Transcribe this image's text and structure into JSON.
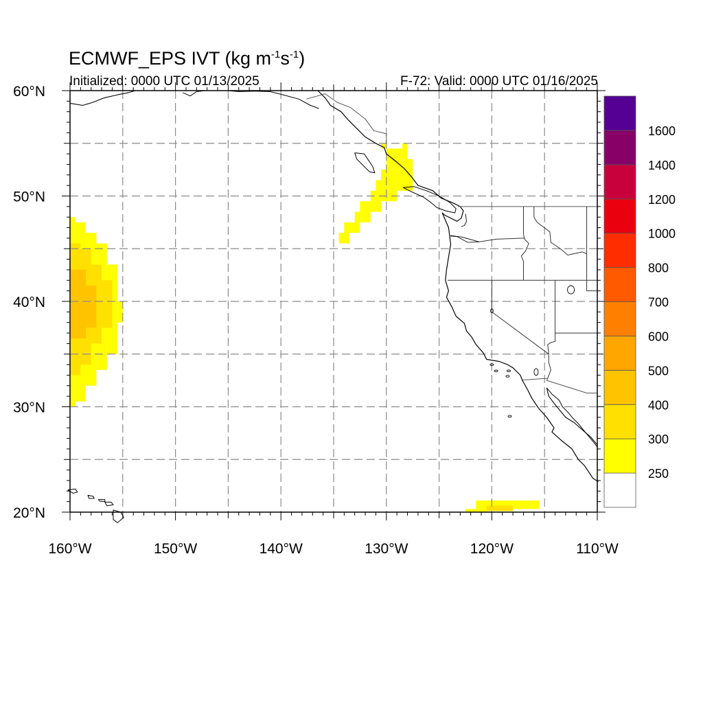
{
  "title": {
    "prefix": "ECMWF_EPS IVT (kg m",
    "exp1": "-1",
    "mid": "s",
    "exp2": "-1",
    "suffix": ")"
  },
  "subtitle_left": "Initialized: 0000 UTC 01/13/2025",
  "subtitle_right": "F-72: Valid: 0000 UTC 01/16/2025",
  "map": {
    "lon_range": [
      -160,
      -110
    ],
    "lat_range": [
      20,
      60
    ],
    "x_ticks": [
      {
        "lon": -160,
        "label": "160°W"
      },
      {
        "lon": -150,
        "label": "150°W"
      },
      {
        "lon": -140,
        "label": "140°W"
      },
      {
        "lon": -130,
        "label": "130°W"
      },
      {
        "lon": -120,
        "label": "120°W"
      },
      {
        "lon": -110,
        "label": "110°W"
      }
    ],
    "y_ticks": [
      {
        "lat": 60,
        "label": "60°N"
      },
      {
        "lat": 50,
        "label": "50°N"
      },
      {
        "lat": 40,
        "label": "40°N"
      },
      {
        "lat": 30,
        "label": "30°N"
      },
      {
        "lat": 20,
        "label": "20°N"
      }
    ],
    "gridlines": "dashed gray every 5 degrees",
    "grid_spacing_deg": 5,
    "colors": {
      "grid": "#8a8a8a",
      "coast": "#000000",
      "state_border": "#333333",
      "frame": "#000000"
    }
  },
  "colorbar": {
    "placement": "right",
    "labels": [
      "250",
      "300",
      "400",
      "500",
      "600",
      "700",
      "800",
      "1000",
      "1200",
      "1400",
      "1600"
    ],
    "colors": [
      "#ffffff",
      "#ffff00",
      "#ffe000",
      "#ffc400",
      "#ffa600",
      "#ff8000",
      "#ff5a00",
      "#ff2d00",
      "#e8000e",
      "#c8003c",
      "#870068",
      "#560093"
    ]
  },
  "ivt_regions": [
    {
      "name": "subtropical plume near 160W",
      "cells": [
        {
          "lon": [
            -160,
            -159.5
          ],
          "lat": [
            30,
            48
          ],
          "level": 1
        },
        {
          "lon": [
            -159.5,
            -158.5
          ],
          "lat": [
            30.5,
            47.5
          ],
          "level": 1
        },
        {
          "lon": [
            -158.5,
            -157.5
          ],
          "lat": [
            32,
            46.5
          ],
          "level": 1
        },
        {
          "lon": [
            -157.5,
            -156.5
          ],
          "lat": [
            33.5,
            45.5
          ],
          "level": 1
        },
        {
          "lon": [
            -156.5,
            -155.5
          ],
          "lat": [
            35,
            43.5
          ],
          "level": 1
        },
        {
          "lon": [
            -155.5,
            -155
          ],
          "lat": [
            38,
            40
          ],
          "level": 1
        },
        {
          "lon": [
            -160,
            -159
          ],
          "lat": [
            33,
            45.5
          ],
          "level": 2
        },
        {
          "lon": [
            -159,
            -158
          ],
          "lat": [
            34,
            45
          ],
          "level": 2
        },
        {
          "lon": [
            -158,
            -157
          ],
          "lat": [
            36,
            43.5
          ],
          "level": 2
        },
        {
          "lon": [
            -157,
            -156
          ],
          "lat": [
            37.5,
            42
          ],
          "level": 2
        },
        {
          "lon": [
            -160,
            -158.5
          ],
          "lat": [
            36.5,
            43
          ],
          "level": 3
        },
        {
          "lon": [
            -158.5,
            -157.5
          ],
          "lat": [
            37.5,
            41.5
          ],
          "level": 3
        }
      ]
    },
    {
      "name": "plume off Vancouver Island",
      "cells": [
        {
          "lon": [
            -134.5,
            -133.5
          ],
          "lat": [
            45.5,
            46.5
          ],
          "level": 1
        },
        {
          "lon": [
            -134,
            -132.5
          ],
          "lat": [
            46.5,
            47.5
          ],
          "level": 1
        },
        {
          "lon": [
            -133,
            -131.5
          ],
          "lat": [
            47.5,
            48.5
          ],
          "level": 1
        },
        {
          "lon": [
            -132.5,
            -130.5
          ],
          "lat": [
            48.5,
            49.5
          ],
          "level": 1
        },
        {
          "lon": [
            -131.5,
            -129
          ],
          "lat": [
            49.5,
            50.5
          ],
          "level": 1
        },
        {
          "lon": [
            -131,
            -127.5
          ],
          "lat": [
            50.5,
            51.5
          ],
          "level": 1
        },
        {
          "lon": [
            -130.5,
            -127.5
          ],
          "lat": [
            51.5,
            52.5
          ],
          "level": 1
        },
        {
          "lon": [
            -130,
            -127.5
          ],
          "lat": [
            52.5,
            53.5
          ],
          "level": 1
        },
        {
          "lon": [
            -130,
            -128.5
          ],
          "lat": [
            53.5,
            54.5
          ],
          "level": 1
        },
        {
          "lon": [
            -128.5,
            -128
          ],
          "lat": [
            53.5,
            55
          ],
          "level": 1
        },
        {
          "lon": [
            -130.5,
            -130
          ],
          "lat": [
            54.5,
            55
          ],
          "level": 1
        }
      ]
    },
    {
      "name": "small plume near 20N 120W",
      "cells": [
        {
          "lon": [
            -122.5,
            -120.5
          ],
          "lat": [
            20,
            20.3
          ],
          "level": 1
        },
        {
          "lon": [
            -121.5,
            -115.5
          ],
          "lat": [
            20.3,
            21.1
          ],
          "level": 1
        },
        {
          "lon": [
            -120,
            -116
          ],
          "lat": [
            20.3,
            20.9
          ],
          "level": 1
        },
        {
          "lon": [
            -120.5,
            -118
          ],
          "lat": [
            20.1,
            20.6
          ],
          "level": 2
        }
      ]
    }
  ]
}
